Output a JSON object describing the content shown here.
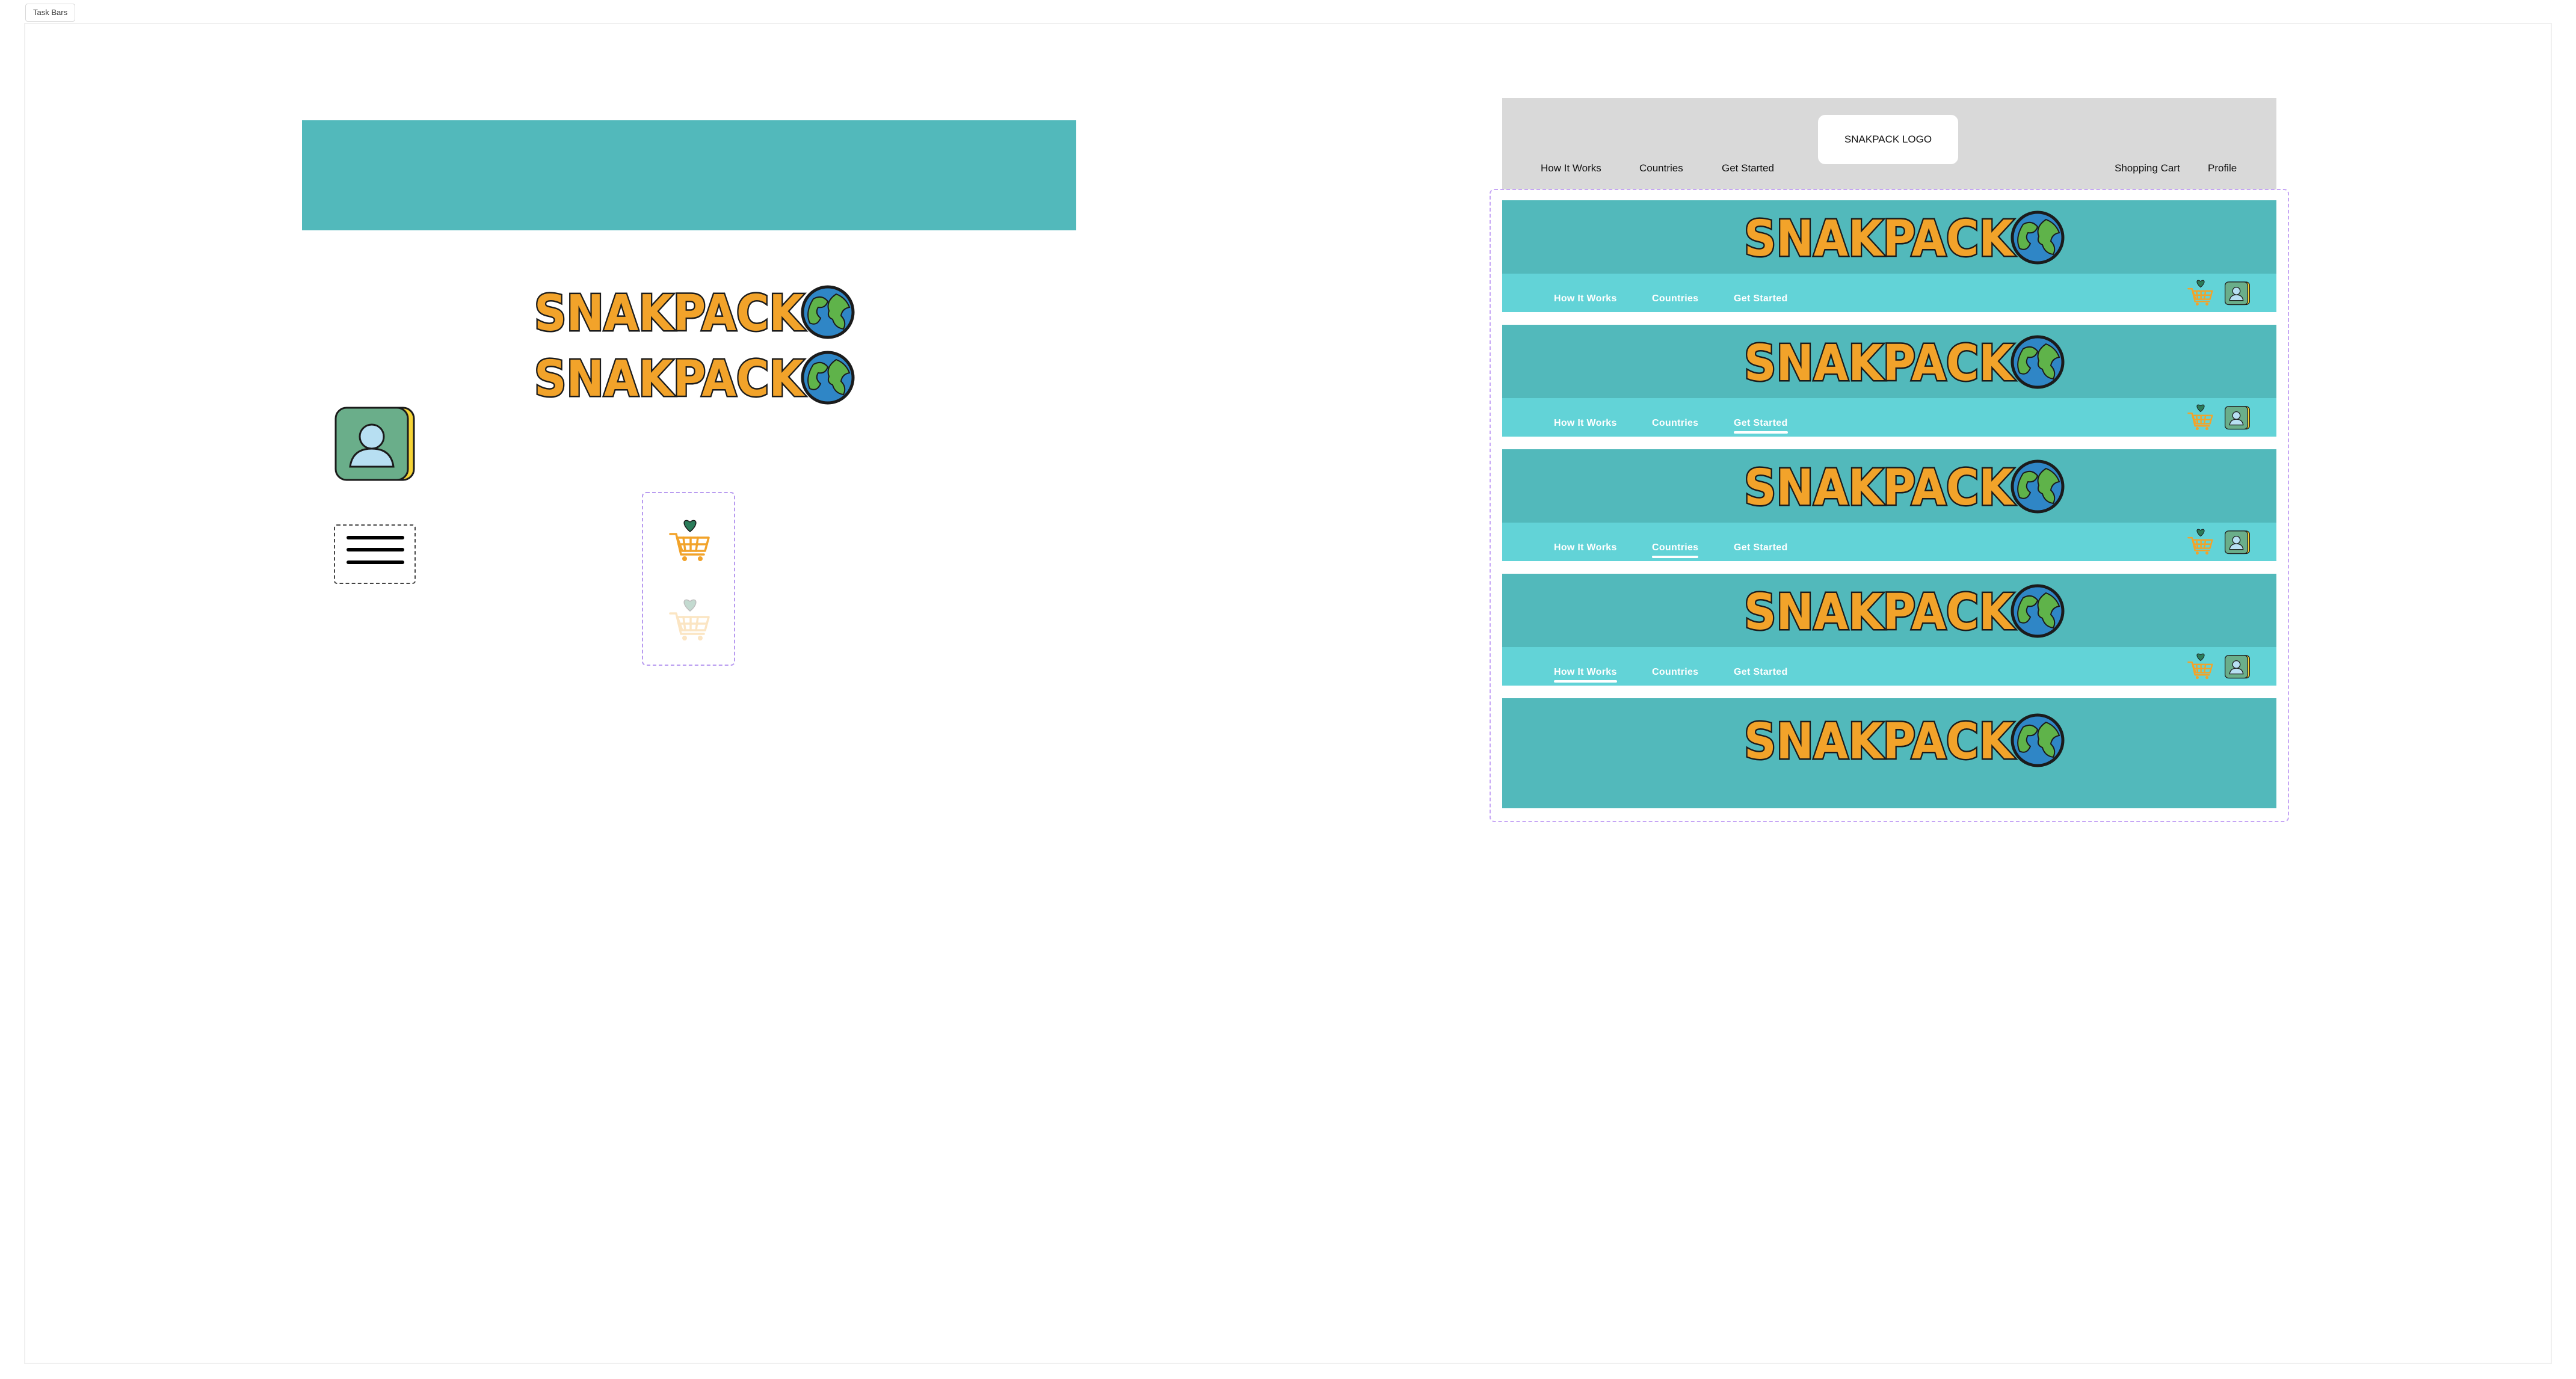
{
  "frame": {
    "label": "Task Bars"
  },
  "logo": {
    "wordmark": "SNAKPACK"
  },
  "wireframe": {
    "logo_placeholder": "SNAKPACK LOGO",
    "links": [
      "How It Works",
      "Countries",
      "Get Started"
    ],
    "right_links": [
      "Shopping Cart",
      "Profile"
    ]
  },
  "nav_links": {
    "how": "How It Works",
    "countries": "Countries",
    "start": "Get Started"
  },
  "header_variants": [
    {
      "active": "none"
    },
    {
      "active": "Get Started"
    },
    {
      "active": "Countries"
    },
    {
      "active": "How It Works"
    },
    {
      "active": "no-nav"
    }
  ],
  "colors": {
    "header_teal": "#52b9bb",
    "nav_teal": "#62d3d7",
    "logo_orange": "#f2a32a",
    "globe_blue": "#2f86c6",
    "globe_green": "#5fb34a",
    "avatar_green": "#6aae8a",
    "wireframe_gray": "#d9d9d9",
    "selection_purple": "#c6a6f5"
  },
  "icons": [
    "user-avatar-icon",
    "hamburger-menu-icon",
    "shopping-cart-heart-icon",
    "globe-icon"
  ]
}
